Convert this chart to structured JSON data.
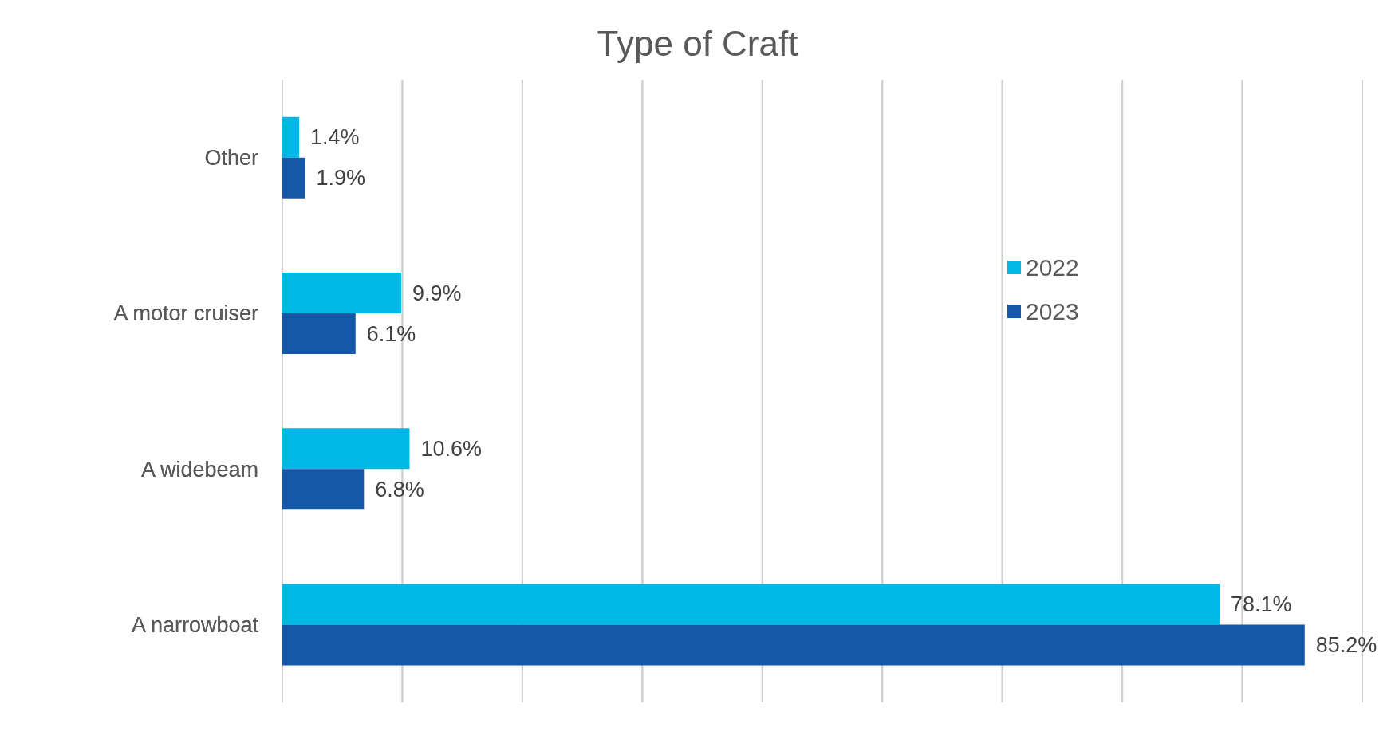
{
  "chart_data": {
    "type": "bar",
    "orientation": "horizontal",
    "title": "Type of Craft",
    "categories": [
      "Other",
      "A motor cruiser",
      "A widebeam",
      "A narrowboat"
    ],
    "series": [
      {
        "name": "2022",
        "color": "#00b8e6",
        "values": [
          1.4,
          9.9,
          10.6,
          78.1
        ],
        "value_labels": [
          "1.4%",
          "9.9%",
          "10.6%",
          "78.1%"
        ]
      },
      {
        "name": "2023",
        "color": "#1558a8",
        "values": [
          1.9,
          6.1,
          6.8,
          85.2
        ],
        "value_labels": [
          "1.9%",
          "6.1%",
          "6.8%",
          "85.2%"
        ]
      }
    ],
    "xlim": [
      0,
      90
    ],
    "xticks": [
      {
        "value": 0,
        "label": null
      },
      {
        "value": 10,
        "label": null
      },
      {
        "value": 20,
        "label": null
      },
      {
        "value": 30,
        "label": null
      },
      {
        "value": 40,
        "label": null
      },
      {
        "value": 50,
        "label": null
      },
      {
        "value": 60,
        "label": null
      },
      {
        "value": 70,
        "label": null
      },
      {
        "value": 80,
        "label": null
      },
      {
        "value": 90,
        "label": null
      }
    ],
    "tick_labels": "y",
    "grid": "x",
    "legend": "right"
  }
}
